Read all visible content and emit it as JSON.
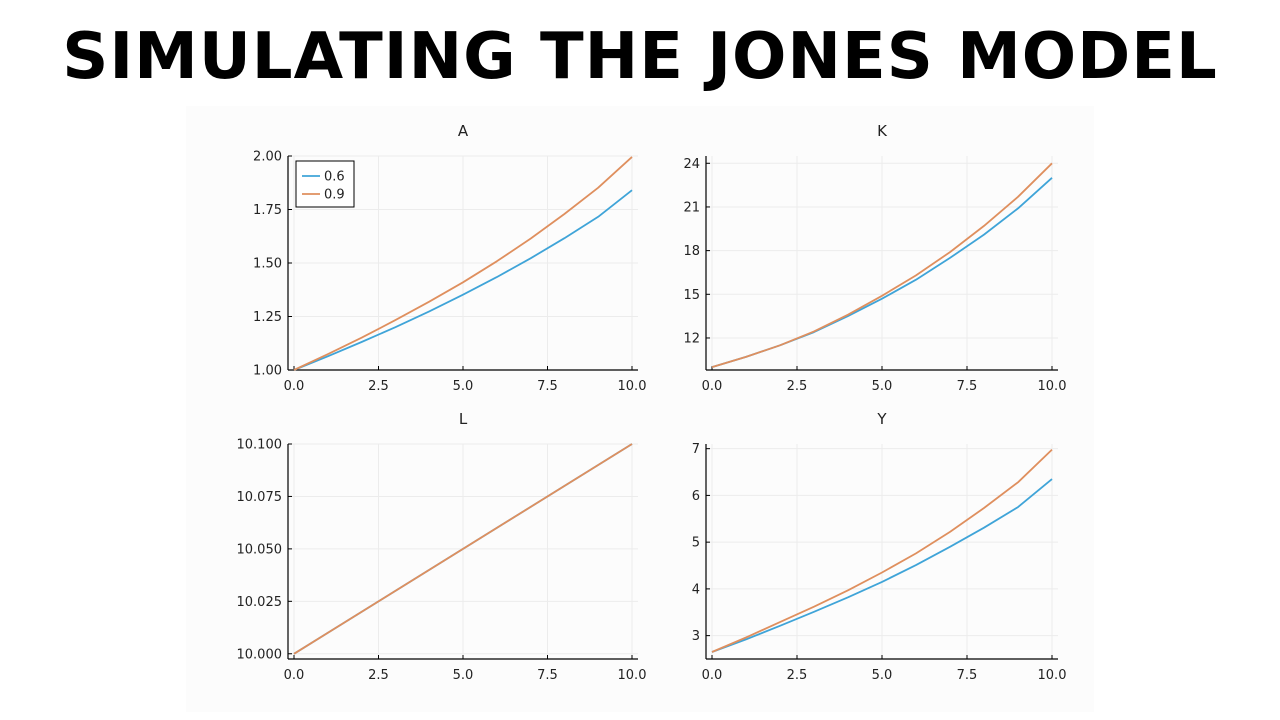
{
  "header": {
    "title": "SIMULATING THE JONES MODEL"
  },
  "chart_data": [
    {
      "type": "line",
      "title": "A",
      "xlabel": "",
      "ylabel": "",
      "xlim": [
        0,
        10
      ],
      "ylim": [
        1.0,
        2.0
      ],
      "xticks": [
        "0.0",
        "2.5",
        "5.0",
        "7.5",
        "10.0"
      ],
      "yticks": [
        "1.00",
        "1.25",
        "1.50",
        "1.75",
        "2.00"
      ],
      "legend": "top-left",
      "grid": true,
      "x": [
        0,
        1,
        2,
        3,
        4,
        5,
        6,
        7,
        8,
        9,
        10
      ],
      "series": [
        {
          "name": "0.6",
          "color": "#3fa4d8",
          "values": [
            1.0,
            1.064,
            1.131,
            1.2,
            1.274,
            1.352,
            1.434,
            1.522,
            1.616,
            1.716,
            1.84
          ]
        },
        {
          "name": "0.9",
          "color": "#df8f5e",
          "values": [
            1.0,
            1.074,
            1.151,
            1.233,
            1.319,
            1.41,
            1.508,
            1.614,
            1.729,
            1.852,
            1.996
          ]
        }
      ]
    },
    {
      "type": "line",
      "title": "K",
      "xlabel": "",
      "ylabel": "",
      "xlim": [
        0,
        10
      ],
      "ylim": [
        9.8,
        24.5
      ],
      "xticks": [
        "0.0",
        "2.5",
        "5.0",
        "7.5",
        "10.0"
      ],
      "yticks": [
        "12",
        "15",
        "18",
        "21",
        "24"
      ],
      "grid": true,
      "x": [
        0,
        1,
        2,
        3,
        4,
        5,
        6,
        7,
        8,
        9,
        10
      ],
      "series": [
        {
          "name": "0.6",
          "color": "#3fa4d8",
          "values": [
            10.0,
            10.7,
            11.5,
            12.4,
            13.5,
            14.7,
            16.0,
            17.5,
            19.1,
            20.9,
            23.0
          ]
        },
        {
          "name": "0.9",
          "color": "#df8f5e",
          "values": [
            10.0,
            10.7,
            11.5,
            12.45,
            13.6,
            14.9,
            16.3,
            17.9,
            19.7,
            21.7,
            24.0
          ]
        }
      ]
    },
    {
      "type": "line",
      "title": "L",
      "xlabel": "",
      "ylabel": "",
      "xlim": [
        0,
        10
      ],
      "ylim": [
        9.9975,
        10.1
      ],
      "xticks": [
        "0.0",
        "2.5",
        "5.0",
        "7.5",
        "10.0"
      ],
      "yticks": [
        "10.000",
        "10.025",
        "10.050",
        "10.075",
        "10.100"
      ],
      "grid": true,
      "x": [
        0,
        10
      ],
      "series": [
        {
          "name": "0.6",
          "color": "#3fa4d8",
          "values": [
            10.0,
            10.1
          ]
        },
        {
          "name": "0.9",
          "color": "#df8f5e",
          "values": [
            10.0,
            10.1
          ]
        }
      ]
    },
    {
      "type": "line",
      "title": "Y",
      "xlabel": "",
      "ylabel": "",
      "xlim": [
        0,
        10
      ],
      "ylim": [
        2.5,
        7.1
      ],
      "xticks": [
        "0.0",
        "2.5",
        "5.0",
        "7.5",
        "10.0"
      ],
      "yticks": [
        "3",
        "4",
        "5",
        "6",
        "7"
      ],
      "grid": true,
      "x": [
        0,
        1,
        2,
        3,
        4,
        5,
        6,
        7,
        8,
        9,
        10
      ],
      "series": [
        {
          "name": "0.6",
          "color": "#3fa4d8",
          "values": [
            2.65,
            2.92,
            3.21,
            3.51,
            3.82,
            4.15,
            4.51,
            4.9,
            5.31,
            5.75,
            6.35
          ]
        },
        {
          "name": "0.9",
          "color": "#df8f5e",
          "values": [
            2.65,
            2.96,
            3.29,
            3.62,
            3.97,
            4.35,
            4.76,
            5.22,
            5.73,
            6.28,
            6.98
          ]
        }
      ]
    }
  ]
}
